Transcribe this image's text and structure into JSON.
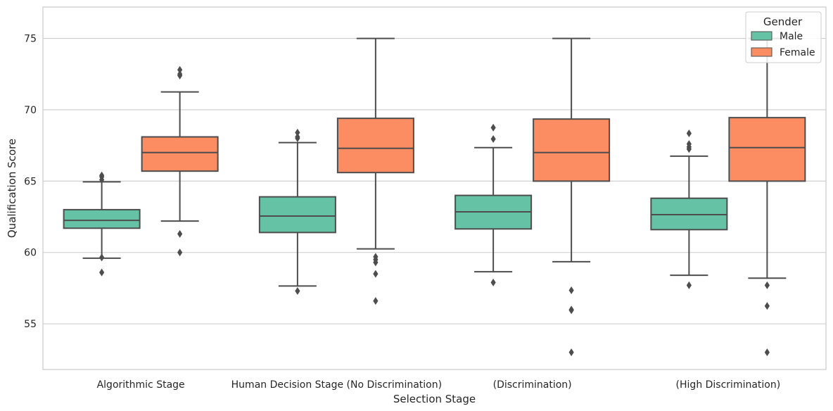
{
  "chart_data": {
    "type": "box",
    "xlabel": "Selection Stage",
    "ylabel": "Qualification Score",
    "categories": [
      "Algorithmic Stage",
      "Human Decision Stage (No Discrimination)",
      "(Discrimination)",
      "(High Discrimination)"
    ],
    "ylim": [
      51.8,
      77.2
    ],
    "yticks": [
      55,
      60,
      65,
      70,
      75
    ],
    "grid": true,
    "legend": {
      "title": "Gender",
      "position": "top-right",
      "entries": [
        {
          "name": "Male",
          "color": "#66c2a5"
        },
        {
          "name": "Female",
          "color": "#fc8d62"
        }
      ]
    },
    "series": [
      {
        "name": "Male",
        "color": "#66c2a5",
        "boxes": [
          {
            "whisker_low": 59.6,
            "q1": 61.7,
            "median": 62.25,
            "q3": 63.0,
            "whisker_high": 64.95,
            "outliers": [
              58.6,
              59.65,
              65.1,
              65.3,
              65.4
            ]
          },
          {
            "whisker_low": 57.65,
            "q1": 61.4,
            "median": 62.55,
            "q3": 63.9,
            "whisker_high": 67.7,
            "outliers": [
              57.3,
              68.0,
              68.1,
              68.4
            ]
          },
          {
            "whisker_low": 58.65,
            "q1": 61.65,
            "median": 62.85,
            "q3": 64.0,
            "whisker_high": 67.35,
            "outliers": [
              57.9,
              67.95,
              68.75
            ]
          },
          {
            "whisker_low": 58.4,
            "q1": 61.6,
            "median": 62.65,
            "q3": 63.8,
            "whisker_high": 66.75,
            "outliers": [
              57.7,
              67.25,
              67.4,
              67.6,
              68.35
            ]
          }
        ]
      },
      {
        "name": "Female",
        "color": "#fc8d62",
        "boxes": [
          {
            "whisker_low": 62.2,
            "q1": 65.7,
            "median": 67.0,
            "q3": 68.1,
            "whisker_high": 71.25,
            "outliers": [
              60.0,
              61.3,
              72.4,
              72.5,
              72.8
            ]
          },
          {
            "whisker_low": 60.25,
            "q1": 65.6,
            "median": 67.3,
            "q3": 69.4,
            "whisker_high": 75.0,
            "outliers": [
              56.6,
              58.5,
              59.3,
              59.5,
              59.7
            ]
          },
          {
            "whisker_low": 59.35,
            "q1": 65.0,
            "median": 67.0,
            "q3": 69.35,
            "whisker_high": 75.0,
            "outliers": [
              53.0,
              55.95,
              56.0,
              57.35
            ]
          },
          {
            "whisker_low": 58.2,
            "q1": 65.0,
            "median": 67.35,
            "q3": 69.45,
            "whisker_high": 75.0,
            "outliers": [
              53.0,
              56.25,
              57.7
            ]
          }
        ]
      }
    ]
  }
}
